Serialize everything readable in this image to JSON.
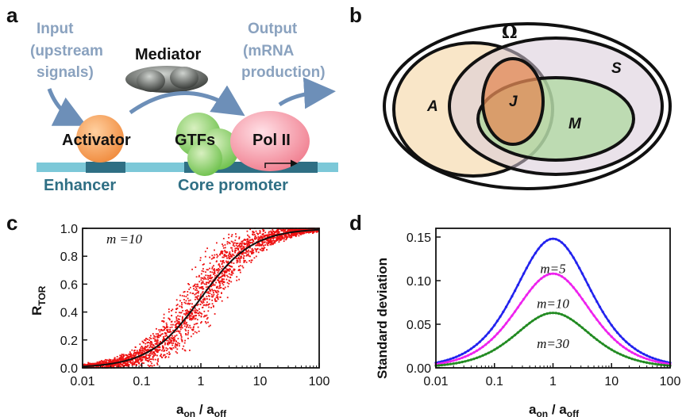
{
  "panel_a": {
    "letter": "a",
    "input_label": "Input",
    "input_sub1": "(upstream",
    "input_sub2": "signals)",
    "mediator": "Mediator",
    "output_label": "Output",
    "output_sub1": "(mRNA",
    "output_sub2": "production)",
    "activator": "Activator",
    "gtfs": "GTFs",
    "pol2": "Pol II",
    "enhancer": "Enhancer",
    "core_promoter": "Core promoter"
  },
  "panel_b": {
    "letter": "b",
    "omega": "Ω",
    "sets": [
      "A",
      "S",
      "J",
      "M"
    ]
  },
  "panel_c": {
    "letter": "c",
    "annotation": "m =10",
    "ylabel_main": "R",
    "ylabel_sub": "TOR",
    "xlabel_main1": "a",
    "xlabel_sub1": "on",
    "xlabel_mid": " / a",
    "xlabel_sub2": "off",
    "x_ticks": [
      "0.01",
      "0.1",
      "1",
      "10",
      "100"
    ],
    "y_ticks": [
      "0.0",
      "0.2",
      "0.4",
      "0.6",
      "0.8",
      "1.0"
    ],
    "colors": {
      "scatter": "#ee1111",
      "curve": "#111111"
    }
  },
  "panel_d": {
    "letter": "d",
    "ylabel": "Standard deviation",
    "xlabel_main1": "a",
    "xlabel_sub1": "on",
    "xlabel_mid": " / a",
    "xlabel_sub2": "off",
    "x_ticks": [
      "0.01",
      "0.1",
      "1",
      "10",
      "100"
    ],
    "y_ticks": [
      "0.00",
      "0.05",
      "0.10",
      "0.15"
    ]
  },
  "chart_data": [
    {
      "type": "scatter",
      "panel": "c",
      "xscale": "log",
      "xlim": [
        0.01,
        100
      ],
      "ylim": [
        0.0,
        1.0
      ],
      "xlabel": "a_on / a_off",
      "ylabel": "R_TOR",
      "annotation": "m =10",
      "series": [
        {
          "kind": "scatter",
          "description_points": "dense cloud around curve, spread max near x=1",
          "x": [
            0.01,
            0.03,
            0.1,
            0.3,
            1,
            3,
            10,
            30,
            100
          ],
          "y": [
            0.01,
            0.03,
            0.09,
            0.23,
            0.5,
            0.75,
            0.91,
            0.97,
            0.99
          ]
        },
        {
          "kind": "line",
          "x": [
            0.01,
            0.03,
            0.1,
            0.3,
            1,
            3,
            10,
            30,
            100
          ],
          "y": [
            0.01,
            0.03,
            0.09,
            0.23,
            0.5,
            0.75,
            0.91,
            0.97,
            0.99
          ]
        }
      ]
    },
    {
      "type": "line",
      "panel": "d",
      "xscale": "log",
      "xlim": [
        0.01,
        100
      ],
      "ylim": [
        0.0,
        0.16
      ],
      "xlabel": "a_on / a_off",
      "ylabel": "Standard deviation",
      "series": [
        {
          "name": "m=5",
          "color": "#2222ee",
          "peak": 0.148
        },
        {
          "name": "m=10",
          "color": "#ee22ee",
          "peak": 0.108
        },
        {
          "name": "m=30",
          "color": "#228b22",
          "peak": 0.063
        }
      ]
    }
  ]
}
